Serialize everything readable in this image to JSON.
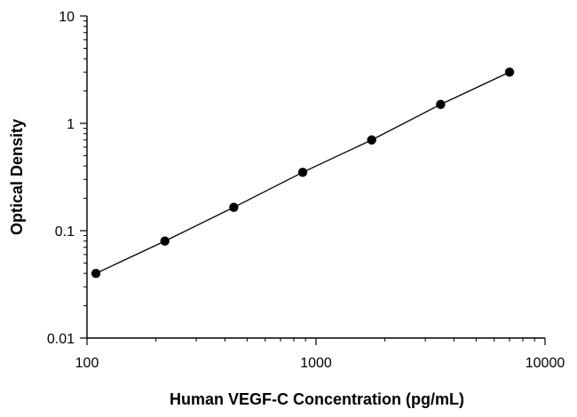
{
  "chart_data": {
    "type": "scatter",
    "title": "",
    "xlabel": "Human VEGF-C Concentration (pg/mL)",
    "ylabel": "Optical Density",
    "x_scale": "log",
    "y_scale": "log",
    "xlim": [
      100,
      10000
    ],
    "ylim": [
      0.01,
      10
    ],
    "x_tick_labels": [
      "100",
      "1000",
      "10000"
    ],
    "y_tick_labels": [
      "0.01",
      "0.1",
      "1",
      "10"
    ],
    "grid": false,
    "legend": "none",
    "trendline": "linear fit through points (log-log)",
    "series": [
      {
        "x": [
          109.4,
          218.8,
          437.5,
          875,
          1750,
          3500,
          7000
        ],
        "y": [
          0.04,
          0.08,
          0.165,
          0.35,
          0.7,
          1.5,
          3.0
        ],
        "color": "#000000",
        "marker": "circle"
      }
    ]
  }
}
